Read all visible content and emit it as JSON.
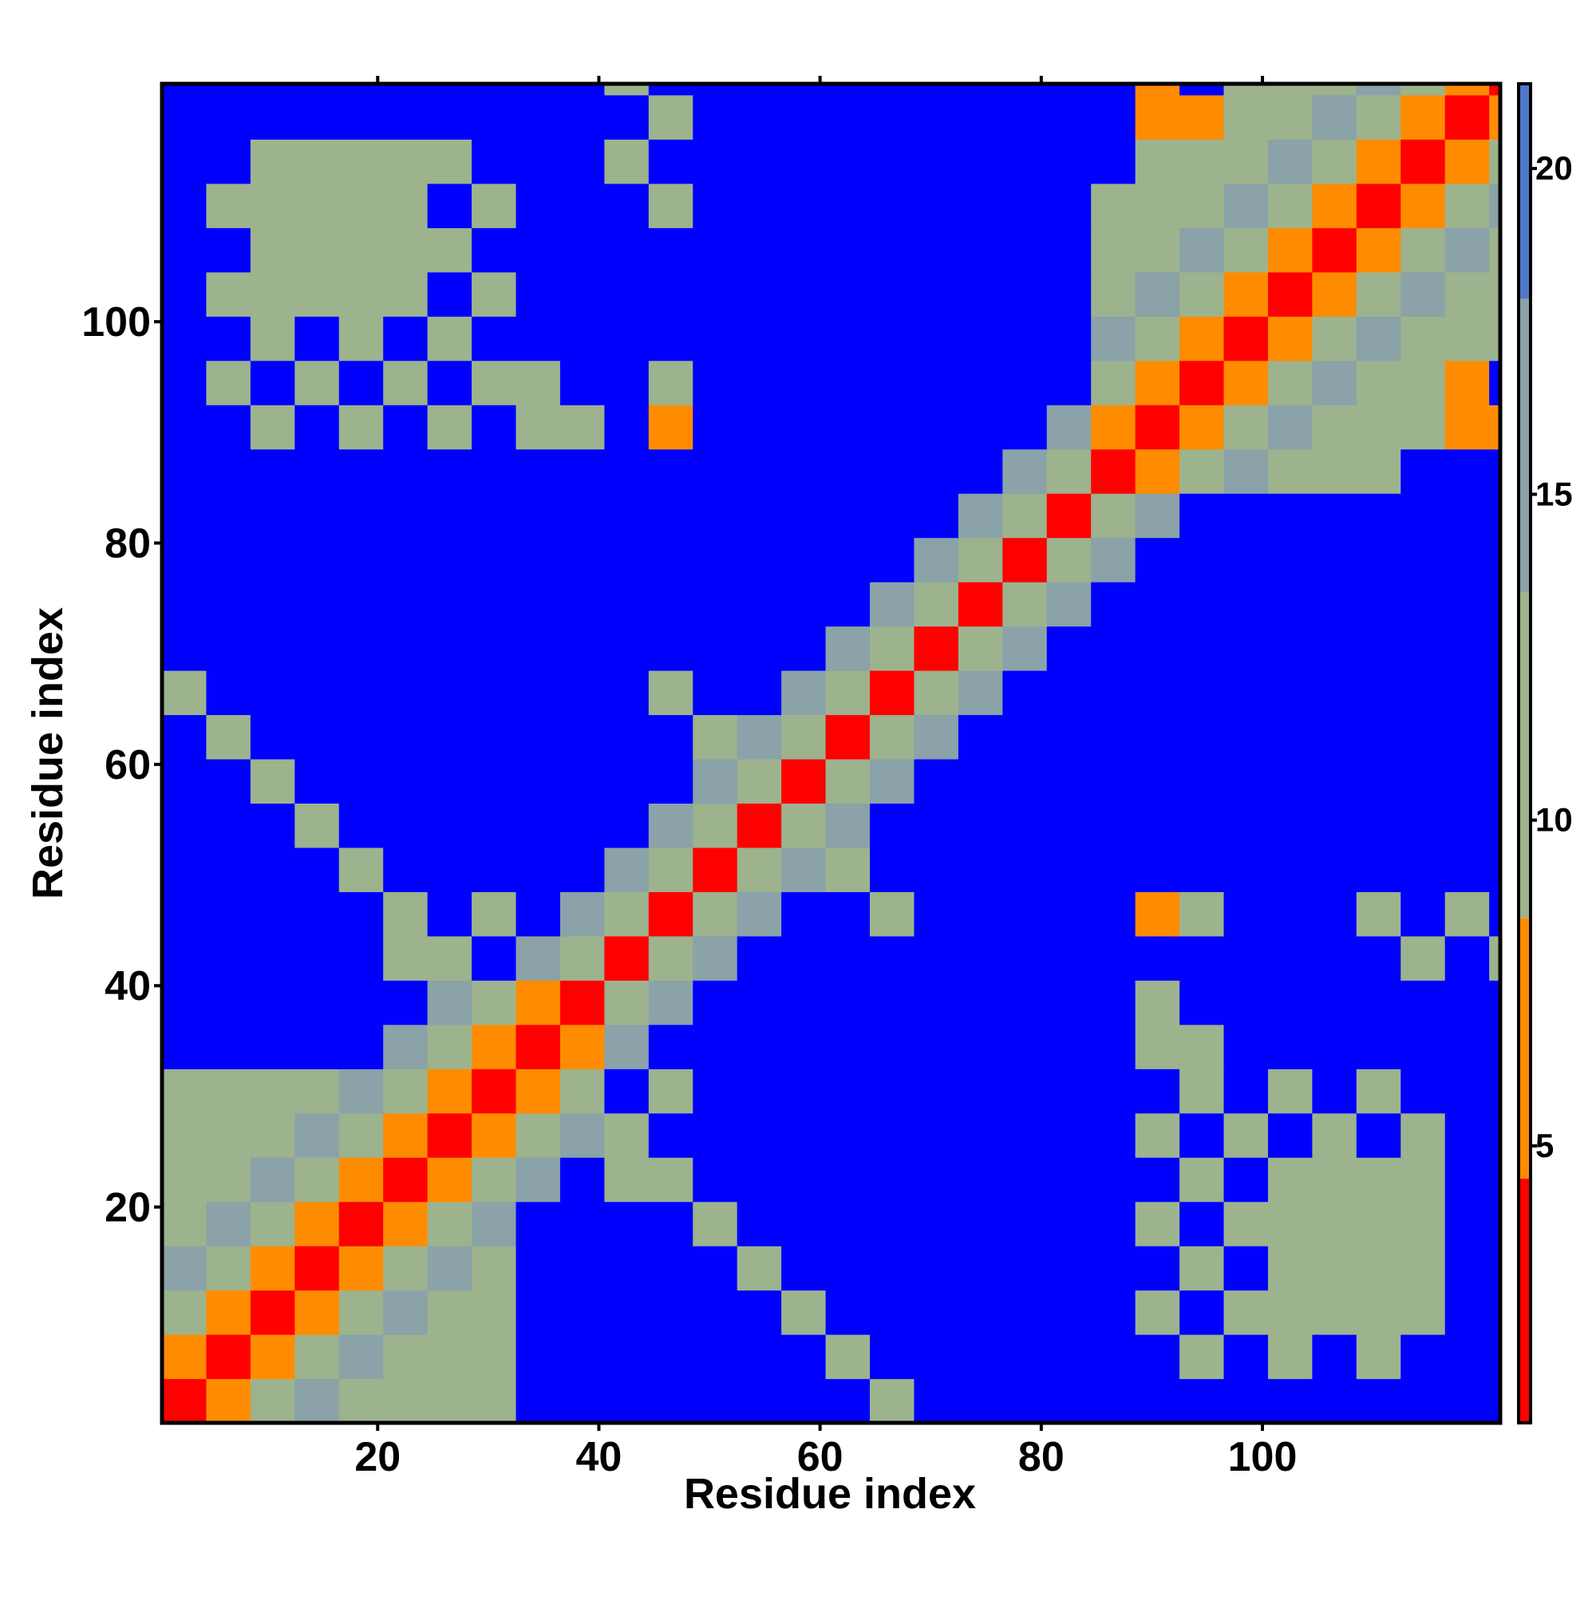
{
  "chart_data": {
    "type": "heatmap",
    "xlabel": "Residue index",
    "ylabel": "Residue index",
    "xbins": [
      0.5,
      4.5,
      8.5,
      12.5,
      16.5,
      20.5,
      24.5,
      28.5,
      32.5,
      36.5,
      40.5,
      44.5,
      48.5,
      52.5,
      56.5,
      60.5,
      64.5,
      68.5,
      72.5,
      76.5,
      80.5,
      84.5,
      88.5,
      92.5,
      96.5,
      100.5,
      104.5,
      108.5,
      112.5,
      116.5,
      120.5,
      121.5
    ],
    "ybins": [
      0.5,
      4.5,
      8.5,
      12.5,
      16.5,
      20.5,
      24.5,
      28.5,
      32.5,
      36.5,
      40.5,
      44.5,
      48.5,
      52.5,
      56.5,
      60.5,
      64.5,
      68.5,
      72.5,
      76.5,
      80.5,
      84.5,
      88.5,
      92.5,
      96.5,
      100.5,
      104.5,
      108.5,
      112.5,
      116.5,
      120.5,
      121.5
    ],
    "xlim": [
      0.5,
      121.5
    ],
    "ylim": [
      0.5,
      121.5
    ],
    "xticks": [
      20,
      40,
      60,
      80,
      100
    ],
    "yticks": [
      20,
      40,
      60,
      80,
      100
    ],
    "zlim": [
      0.75,
      21.3
    ],
    "zticks": [
      5,
      10,
      15,
      20
    ],
    "colorscale": [
      {
        "to": 4.5,
        "color": "#ff0000"
      },
      {
        "to": 8.5,
        "color": "#ff8c00"
      },
      {
        "to": 13.5,
        "color": "#9cb38e"
      },
      {
        "to": 18,
        "color": "#8aa2a8"
      },
      {
        "to": 21.3,
        "color": "#4f78c8"
      }
    ],
    "over_color": "#0000ff",
    "z": [
      [
        3,
        6,
        11,
        16,
        12,
        12,
        12,
        12,
        22,
        22,
        22,
        22,
        22,
        22,
        22,
        22,
        12,
        22,
        22,
        22,
        22,
        22,
        22,
        22,
        22,
        22,
        22,
        22,
        22,
        22,
        22
      ],
      [
        6,
        3,
        6,
        11,
        16,
        12,
        12,
        12,
        22,
        22,
        22,
        22,
        22,
        22,
        22,
        12,
        22,
        22,
        22,
        22,
        22,
        22,
        22,
        12,
        22,
        12,
        22,
        12,
        22,
        22,
        22
      ],
      [
        11,
        6,
        3,
        6,
        11,
        16,
        12,
        12,
        22,
        22,
        22,
        22,
        22,
        22,
        12,
        22,
        22,
        22,
        22,
        22,
        22,
        22,
        12,
        22,
        12,
        12,
        12,
        12,
        12,
        22,
        22
      ],
      [
        16,
        11,
        6,
        3,
        6,
        11,
        16,
        12,
        22,
        22,
        22,
        22,
        22,
        12,
        22,
        22,
        22,
        22,
        22,
        22,
        22,
        22,
        22,
        12,
        22,
        12,
        12,
        12,
        12,
        22,
        22
      ],
      [
        12,
        16,
        11,
        6,
        3,
        6,
        11,
        16,
        22,
        22,
        22,
        22,
        12,
        22,
        22,
        22,
        22,
        22,
        22,
        22,
        22,
        22,
        12,
        22,
        12,
        12,
        12,
        12,
        12,
        22,
        22
      ],
      [
        12,
        12,
        16,
        11,
        6,
        3,
        6,
        11,
        16,
        22,
        12,
        12,
        22,
        22,
        22,
        22,
        22,
        22,
        22,
        22,
        22,
        22,
        22,
        12,
        22,
        12,
        12,
        12,
        12,
        22,
        22
      ],
      [
        12,
        12,
        12,
        16,
        11,
        6,
        3,
        6,
        11,
        16,
        12,
        22,
        22,
        22,
        22,
        22,
        22,
        22,
        22,
        22,
        22,
        22,
        12,
        22,
        12,
        22,
        12,
        22,
        12,
        22,
        22
      ],
      [
        12,
        12,
        12,
        12,
        16,
        11,
        6,
        3,
        6,
        11,
        22,
        12,
        22,
        22,
        22,
        22,
        22,
        22,
        22,
        22,
        22,
        22,
        22,
        12,
        22,
        12,
        22,
        12,
        22,
        22,
        22
      ],
      [
        22,
        22,
        22,
        22,
        22,
        16,
        11,
        6,
        3,
        6,
        16,
        22,
        22,
        22,
        22,
        22,
        22,
        22,
        22,
        22,
        22,
        22,
        12,
        12,
        22,
        22,
        22,
        22,
        22,
        22,
        22
      ],
      [
        22,
        22,
        22,
        22,
        22,
        22,
        16,
        11,
        6,
        3,
        11,
        16,
        22,
        22,
        22,
        22,
        22,
        22,
        22,
        22,
        22,
        22,
        12,
        22,
        22,
        22,
        22,
        22,
        22,
        22,
        22
      ],
      [
        22,
        22,
        22,
        22,
        22,
        12,
        12,
        22,
        16,
        11,
        3,
        11,
        16,
        22,
        22,
        22,
        22,
        22,
        22,
        22,
        22,
        22,
        22,
        22,
        22,
        22,
        22,
        22,
        12,
        22,
        12
      ],
      [
        22,
        22,
        22,
        22,
        22,
        12,
        22,
        12,
        22,
        16,
        11,
        3,
        11,
        16,
        22,
        22,
        12,
        22,
        22,
        22,
        22,
        22,
        7,
        12,
        22,
        22,
        22,
        12,
        22,
        12,
        22
      ],
      [
        22,
        22,
        22,
        22,
        12,
        22,
        22,
        22,
        22,
        22,
        16,
        11,
        3,
        11,
        16,
        12,
        22,
        22,
        22,
        22,
        22,
        22,
        22,
        22,
        22,
        22,
        22,
        22,
        22,
        22,
        22
      ],
      [
        22,
        22,
        22,
        12,
        22,
        22,
        22,
        22,
        22,
        22,
        22,
        16,
        11,
        3,
        11,
        16,
        22,
        22,
        22,
        22,
        22,
        22,
        22,
        22,
        22,
        22,
        22,
        22,
        22,
        22,
        22
      ],
      [
        22,
        22,
        12,
        22,
        22,
        22,
        22,
        22,
        22,
        22,
        22,
        22,
        16,
        11,
        3,
        11,
        16,
        22,
        22,
        22,
        22,
        22,
        22,
        22,
        22,
        22,
        22,
        22,
        22,
        22,
        22
      ],
      [
        22,
        12,
        22,
        22,
        22,
        22,
        22,
        22,
        22,
        22,
        22,
        22,
        12,
        16,
        11,
        3,
        11,
        16,
        22,
        22,
        22,
        22,
        22,
        22,
        22,
        22,
        22,
        22,
        22,
        22,
        22
      ],
      [
        12,
        22,
        22,
        22,
        22,
        22,
        22,
        22,
        22,
        22,
        22,
        12,
        22,
        22,
        16,
        11,
        3,
        11,
        16,
        22,
        22,
        22,
        22,
        22,
        22,
        22,
        22,
        22,
        22,
        22,
        22
      ],
      [
        22,
        22,
        22,
        22,
        22,
        22,
        22,
        22,
        22,
        22,
        22,
        22,
        22,
        22,
        22,
        16,
        11,
        3,
        11,
        16,
        22,
        22,
        22,
        22,
        22,
        22,
        22,
        22,
        22,
        22,
        22
      ],
      [
        22,
        22,
        22,
        22,
        22,
        22,
        22,
        22,
        22,
        22,
        22,
        22,
        22,
        22,
        22,
        22,
        16,
        11,
        3,
        11,
        16,
        22,
        22,
        22,
        22,
        22,
        22,
        22,
        22,
        22,
        22
      ],
      [
        22,
        22,
        22,
        22,
        22,
        22,
        22,
        22,
        22,
        22,
        22,
        22,
        22,
        22,
        22,
        22,
        22,
        16,
        11,
        3,
        11,
        16,
        22,
        22,
        22,
        22,
        22,
        22,
        22,
        22,
        22
      ],
      [
        22,
        22,
        22,
        22,
        22,
        22,
        22,
        22,
        22,
        22,
        22,
        22,
        22,
        22,
        22,
        22,
        22,
        22,
        16,
        11,
        3,
        11,
        16,
        22,
        22,
        22,
        22,
        22,
        22,
        22,
        22
      ],
      [
        22,
        22,
        22,
        22,
        22,
        22,
        22,
        22,
        22,
        22,
        22,
        22,
        22,
        22,
        22,
        22,
        22,
        22,
        22,
        16,
        11,
        3,
        6,
        11,
        16,
        12,
        12,
        12,
        22,
        22,
        22
      ],
      [
        22,
        22,
        12,
        22,
        12,
        22,
        12,
        22,
        12,
        12,
        22,
        7,
        22,
        22,
        22,
        22,
        22,
        22,
        22,
        22,
        16,
        6,
        3,
        6,
        11,
        16,
        12,
        12,
        12,
        7,
        7
      ],
      [
        22,
        12,
        22,
        12,
        22,
        12,
        22,
        12,
        12,
        22,
        22,
        12,
        22,
        22,
        22,
        22,
        22,
        22,
        22,
        22,
        22,
        11,
        6,
        3,
        6,
        11,
        16,
        12,
        12,
        7,
        22
      ],
      [
        22,
        22,
        12,
        22,
        12,
        22,
        12,
        22,
        22,
        22,
        22,
        22,
        22,
        22,
        22,
        22,
        22,
        22,
        22,
        22,
        22,
        16,
        11,
        6,
        3,
        6,
        11,
        16,
        12,
        12,
        12
      ],
      [
        22,
        12,
        12,
        12,
        12,
        12,
        22,
        12,
        22,
        22,
        22,
        22,
        22,
        22,
        22,
        22,
        22,
        22,
        22,
        22,
        22,
        12,
        16,
        11,
        6,
        3,
        6,
        11,
        16,
        12,
        12
      ],
      [
        22,
        22,
        12,
        12,
        12,
        12,
        12,
        22,
        22,
        22,
        22,
        22,
        22,
        22,
        22,
        22,
        22,
        22,
        22,
        22,
        22,
        12,
        12,
        16,
        11,
        6,
        3,
        6,
        11,
        16,
        12
      ],
      [
        22,
        12,
        12,
        12,
        12,
        12,
        22,
        12,
        22,
        22,
        22,
        12,
        22,
        22,
        22,
        22,
        22,
        22,
        22,
        22,
        22,
        12,
        12,
        12,
        16,
        11,
        6,
        3,
        6,
        11,
        16
      ],
      [
        22,
        22,
        12,
        12,
        12,
        12,
        12,
        22,
        22,
        22,
        12,
        22,
        22,
        22,
        22,
        22,
        22,
        22,
        22,
        22,
        22,
        22,
        12,
        12,
        12,
        16,
        11,
        6,
        3,
        6,
        11
      ],
      [
        22,
        22,
        22,
        22,
        22,
        22,
        22,
        22,
        22,
        22,
        22,
        12,
        22,
        22,
        22,
        22,
        22,
        22,
        22,
        22,
        22,
        22,
        7,
        7,
        12,
        12,
        16,
        11,
        6,
        3,
        6
      ],
      [
        22,
        22,
        22,
        22,
        22,
        22,
        22,
        22,
        22,
        22,
        12,
        22,
        22,
        22,
        22,
        22,
        22,
        22,
        22,
        22,
        22,
        22,
        7,
        22,
        12,
        12,
        12,
        16,
        11,
        6,
        3
      ]
    ]
  }
}
